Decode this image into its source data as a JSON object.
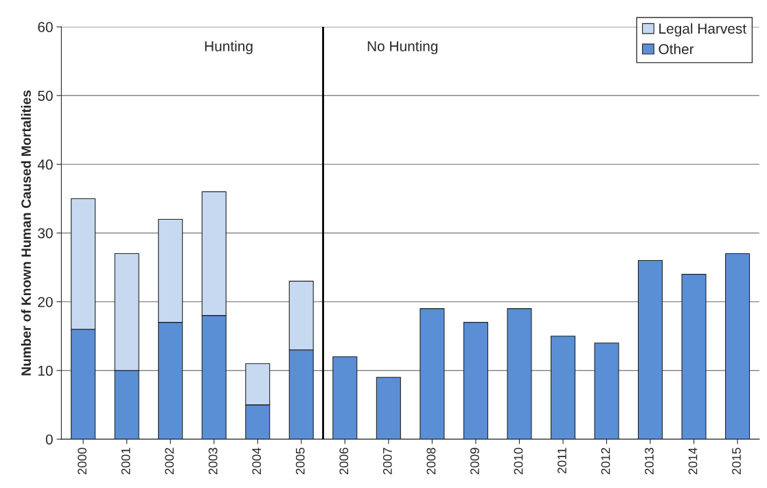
{
  "chart_data": {
    "type": "bar",
    "ylabel": "Number of Known Human Caused Mortalities",
    "categories": [
      "2000",
      "2001",
      "2002",
      "2003",
      "2004",
      "2005",
      "2006",
      "2007",
      "2008",
      "2009",
      "2010",
      "2011",
      "2012",
      "2013",
      "2014",
      "2015"
    ],
    "stacked": true,
    "series": [
      {
        "name": "Other",
        "color": "#5a8fd6",
        "values": [
          16,
          10,
          17,
          18,
          5,
          13,
          12,
          9,
          19,
          17,
          19,
          15,
          14,
          26,
          24,
          27
        ]
      },
      {
        "name": "Legal Harvest",
        "color": "#c6d9f1",
        "values": [
          19,
          17,
          15,
          18,
          6,
          10,
          null,
          null,
          null,
          null,
          null,
          null,
          null,
          null,
          null,
          null
        ]
      }
    ],
    "ylim": [
      0,
      60
    ],
    "yticks": [
      0,
      10,
      20,
      30,
      40,
      50,
      60
    ],
    "grid": "y",
    "legend": "top right",
    "ref_lines": [
      {
        "axis": "x",
        "value": "2005",
        "color": "#000000"
      }
    ],
    "annotations": [
      "Hunting",
      "No Hunting"
    ]
  }
}
